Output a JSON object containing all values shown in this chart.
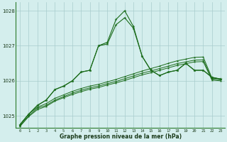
{
  "title": "Graphe pression niveau de la mer (hPa)",
  "bg_color": "#d4eeed",
  "grid_color": "#a8cccc",
  "line_color": "#1a6b1a",
  "hours": [
    0,
    1,
    2,
    3,
    4,
    5,
    6,
    7,
    8,
    9,
    10,
    11,
    12,
    13,
    14,
    15,
    16,
    17,
    18,
    19,
    20,
    21,
    22,
    23
  ],
  "series_spike": [
    1024.75,
    1025.05,
    1025.3,
    1025.45,
    1025.75,
    1025.85,
    1026.0,
    1026.25,
    1026.3,
    1027.0,
    1027.1,
    1027.75,
    1028.0,
    1027.55,
    1026.7,
    1026.3,
    1026.15,
    1026.25,
    1026.3,
    1026.5,
    1026.3,
    1026.3,
    1026.1,
    1026.05
  ],
  "series_mid": [
    1024.75,
    1025.05,
    1025.3,
    1025.45,
    1025.75,
    1025.85,
    1026.0,
    1026.25,
    1026.3,
    1027.0,
    1027.05,
    1027.6,
    1027.8,
    1027.5,
    1026.7,
    1026.3,
    1026.15,
    1026.25,
    1026.3,
    1026.5,
    1026.3,
    1026.3,
    1026.1,
    1026.05
  ],
  "series_smooth1": [
    1024.75,
    1025.05,
    1025.25,
    1025.35,
    1025.5,
    1025.6,
    1025.7,
    1025.78,
    1025.85,
    1025.9,
    1025.97,
    1026.04,
    1026.12,
    1026.2,
    1026.28,
    1026.35,
    1026.42,
    1026.5,
    1026.57,
    1026.62,
    1026.67,
    1026.68,
    1026.08,
    1026.05
  ],
  "series_smooth2": [
    1024.72,
    1025.0,
    1025.22,
    1025.3,
    1025.45,
    1025.55,
    1025.65,
    1025.73,
    1025.8,
    1025.85,
    1025.92,
    1025.98,
    1026.06,
    1026.14,
    1026.22,
    1026.28,
    1026.35,
    1026.42,
    1026.49,
    1026.54,
    1026.59,
    1026.6,
    1026.05,
    1026.03
  ],
  "series_smooth3": [
    1024.7,
    1024.98,
    1025.18,
    1025.27,
    1025.42,
    1025.52,
    1025.61,
    1025.69,
    1025.76,
    1025.81,
    1025.88,
    1025.94,
    1026.01,
    1026.09,
    1026.17,
    1026.23,
    1026.3,
    1026.37,
    1026.44,
    1026.49,
    1026.54,
    1026.55,
    1026.02,
    1026.0
  ],
  "ylim": [
    1024.65,
    1028.25
  ],
  "yticks": [
    1025,
    1026,
    1027,
    1028
  ],
  "figsize": [
    3.2,
    2.0
  ],
  "dpi": 100
}
